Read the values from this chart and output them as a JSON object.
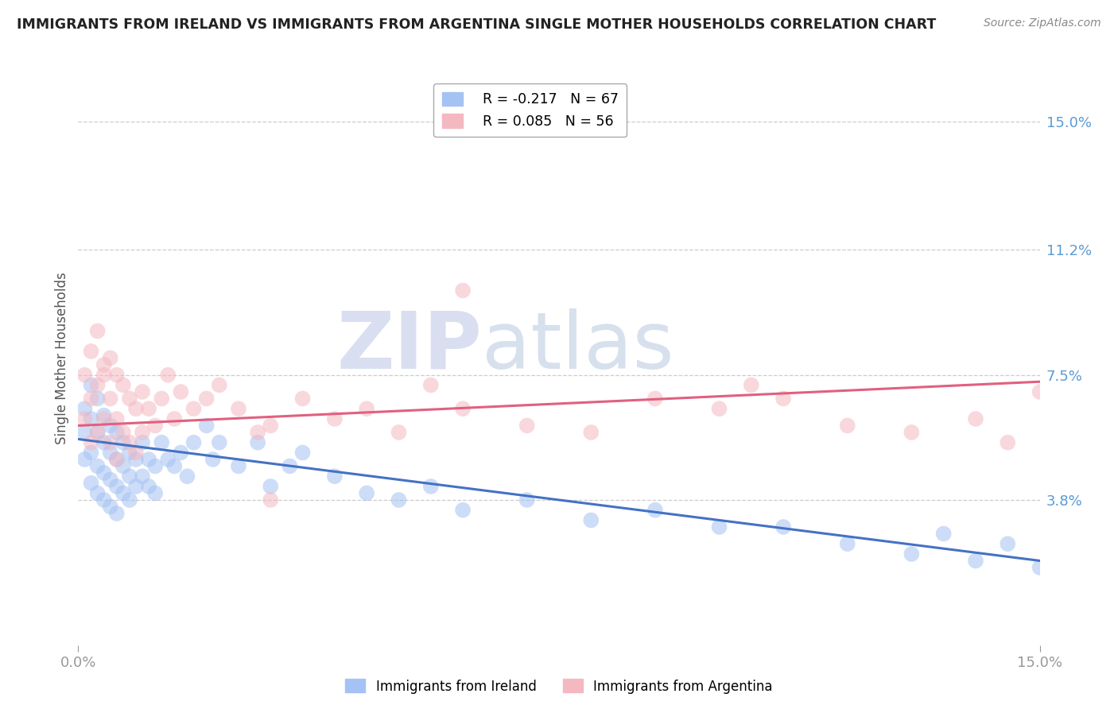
{
  "title": "IMMIGRANTS FROM IRELAND VS IMMIGRANTS FROM ARGENTINA SINGLE MOTHER HOUSEHOLDS CORRELATION CHART",
  "source": "Source: ZipAtlas.com",
  "ylabel": "Single Mother Households",
  "y_tick_labels": [
    "3.8%",
    "7.5%",
    "11.2%",
    "15.0%"
  ],
  "y_tick_values": [
    0.038,
    0.075,
    0.112,
    0.15
  ],
  "xlim": [
    0.0,
    0.15
  ],
  "ylim": [
    -0.005,
    0.165
  ],
  "ireland_color": "#a4c2f4",
  "argentina_color": "#f4b8c1",
  "ireland_line_color": "#4472c4",
  "argentina_line_color": "#e06080",
  "ireland_R": -0.217,
  "ireland_N": 67,
  "argentina_R": 0.085,
  "argentina_N": 56,
  "watermark_zip": "ZIP",
  "watermark_atlas": "atlas",
  "ireland_scatter_x": [
    0.001,
    0.001,
    0.001,
    0.002,
    0.002,
    0.002,
    0.002,
    0.003,
    0.003,
    0.003,
    0.003,
    0.004,
    0.004,
    0.004,
    0.004,
    0.005,
    0.005,
    0.005,
    0.005,
    0.006,
    0.006,
    0.006,
    0.006,
    0.007,
    0.007,
    0.007,
    0.008,
    0.008,
    0.008,
    0.009,
    0.009,
    0.01,
    0.01,
    0.011,
    0.011,
    0.012,
    0.012,
    0.013,
    0.014,
    0.015,
    0.016,
    0.017,
    0.018,
    0.02,
    0.021,
    0.022,
    0.025,
    0.028,
    0.03,
    0.033,
    0.035,
    0.04,
    0.045,
    0.05,
    0.055,
    0.06,
    0.07,
    0.08,
    0.09,
    0.1,
    0.11,
    0.12,
    0.13,
    0.135,
    0.14,
    0.145,
    0.15
  ],
  "ireland_scatter_y": [
    0.065,
    0.058,
    0.05,
    0.072,
    0.062,
    0.052,
    0.043,
    0.068,
    0.058,
    0.048,
    0.04,
    0.063,
    0.055,
    0.046,
    0.038,
    0.06,
    0.052,
    0.044,
    0.036,
    0.058,
    0.05,
    0.042,
    0.034,
    0.055,
    0.048,
    0.04,
    0.052,
    0.045,
    0.038,
    0.05,
    0.042,
    0.055,
    0.045,
    0.05,
    0.042,
    0.048,
    0.04,
    0.055,
    0.05,
    0.048,
    0.052,
    0.045,
    0.055,
    0.06,
    0.05,
    0.055,
    0.048,
    0.055,
    0.042,
    0.048,
    0.052,
    0.045,
    0.04,
    0.038,
    0.042,
    0.035,
    0.038,
    0.032,
    0.035,
    0.03,
    0.03,
    0.025,
    0.022,
    0.028,
    0.02,
    0.025,
    0.018
  ],
  "argentina_scatter_x": [
    0.001,
    0.001,
    0.002,
    0.002,
    0.002,
    0.003,
    0.003,
    0.003,
    0.004,
    0.004,
    0.005,
    0.005,
    0.005,
    0.006,
    0.006,
    0.006,
    0.007,
    0.007,
    0.008,
    0.008,
    0.009,
    0.009,
    0.01,
    0.01,
    0.011,
    0.012,
    0.013,
    0.014,
    0.015,
    0.016,
    0.018,
    0.02,
    0.022,
    0.025,
    0.028,
    0.03,
    0.035,
    0.04,
    0.045,
    0.05,
    0.055,
    0.06,
    0.07,
    0.08,
    0.09,
    0.1,
    0.105,
    0.11,
    0.12,
    0.13,
    0.14,
    0.145,
    0.15,
    0.03,
    0.06,
    0.004
  ],
  "argentina_scatter_y": [
    0.075,
    0.062,
    0.082,
    0.068,
    0.055,
    0.088,
    0.072,
    0.058,
    0.078,
    0.062,
    0.08,
    0.068,
    0.055,
    0.075,
    0.062,
    0.05,
    0.072,
    0.058,
    0.068,
    0.055,
    0.065,
    0.052,
    0.07,
    0.058,
    0.065,
    0.06,
    0.068,
    0.075,
    0.062,
    0.07,
    0.065,
    0.068,
    0.072,
    0.065,
    0.058,
    0.06,
    0.068,
    0.062,
    0.065,
    0.058,
    0.072,
    0.065,
    0.06,
    0.058,
    0.068,
    0.065,
    0.072,
    0.068,
    0.06,
    0.058,
    0.062,
    0.055,
    0.07,
    0.038,
    0.1,
    0.075
  ]
}
